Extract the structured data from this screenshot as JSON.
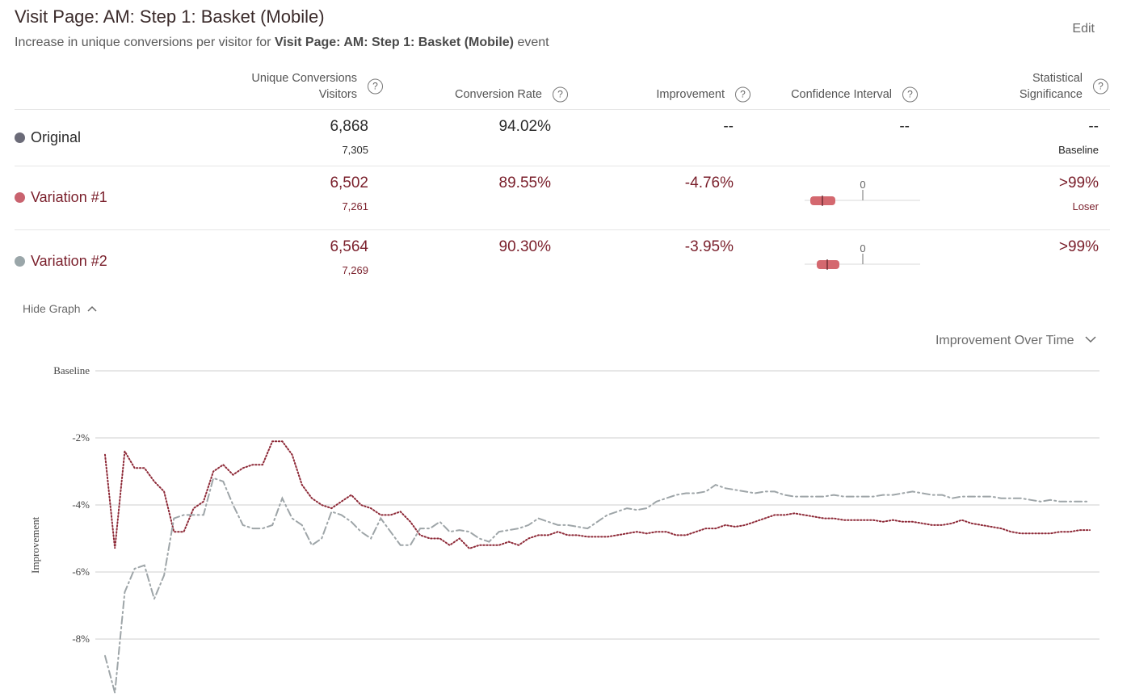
{
  "header": {
    "title": "Visit Page: AM: Step 1: Basket (Mobile)",
    "subtitle_prefix": "Increase in unique conversions per visitor for",
    "subtitle_event": "Visit Page: AM: Step 1: Basket (Mobile)",
    "subtitle_suffix": "event",
    "edit_label": "Edit"
  },
  "columns": {
    "conversions_line1": "Unique Conversions",
    "conversions_line2": "Visitors",
    "rate": "Conversion Rate",
    "improvement": "Improvement",
    "ci": "Confidence Interval",
    "sig_line1": "Statistical",
    "sig_line2": "Significance",
    "help_glyph": "?"
  },
  "rows": [
    {
      "name": "Original",
      "conversions": "6,868",
      "visitors": "7,305",
      "rate": "94.02%",
      "improvement": "--",
      "ci": "--",
      "significance": "--",
      "sig_note": "Baseline",
      "dot_color": "#6b6b78"
    },
    {
      "name": "Variation #1",
      "conversions": "6,502",
      "visitors": "7,261",
      "rate": "89.55%",
      "improvement": "-4.76%",
      "ci_zero": "0",
      "significance": ">99%",
      "sig_note": "Loser",
      "dot_color": "#c9636f"
    },
    {
      "name": "Variation #2",
      "conversions": "6,564",
      "visitors": "7,269",
      "rate": "90.30%",
      "improvement": "-3.95%",
      "ci_zero": "0",
      "significance": ">99%",
      "sig_note": "",
      "dot_color": "#9aa6a9"
    }
  ],
  "graph": {
    "hide_label": "Hide Graph",
    "metric_selector": "Improvement Over Time"
  },
  "colors": {
    "accent_maroon": "#7a1f2b",
    "ci_bar": "#d4686f",
    "variation1_line": "#8e2a38",
    "variation2_line": "#9ea5a8",
    "grid": "#cfcfcf"
  },
  "chart_data": {
    "type": "line",
    "ylabel": "Improvement",
    "ylim": [
      -9.5,
      0
    ],
    "yticks": [
      {
        "value": 0,
        "label": "Baseline"
      },
      {
        "value": -2,
        "label": "-2%"
      },
      {
        "value": -4,
        "label": "-4%"
      },
      {
        "value": -6,
        "label": "-6%"
      },
      {
        "value": -8,
        "label": "-8%"
      }
    ],
    "grid": true,
    "x_count": 101,
    "series": [
      {
        "key": "v1",
        "style": "dotted",
        "values": [
          -2.5,
          -5.3,
          -2.4,
          -2.9,
          -2.9,
          -3.3,
          -3.6,
          -4.8,
          -4.8,
          -4.1,
          -3.9,
          -3.0,
          -2.8,
          -3.1,
          -2.9,
          -2.8,
          -2.8,
          -2.1,
          -2.1,
          -2.5,
          -3.4,
          -3.8,
          -4.0,
          -4.1,
          -3.9,
          -3.7,
          -4.0,
          -4.1,
          -4.3,
          -4.3,
          -4.2,
          -4.5,
          -4.9,
          -5.0,
          -5.0,
          -5.2,
          -5.0,
          -5.3,
          -5.2,
          -5.2,
          -5.2,
          -5.1,
          -5.2,
          -5.0,
          -4.9,
          -4.9,
          -4.8,
          -4.9,
          -4.9,
          -4.95,
          -4.95,
          -4.95,
          -4.9,
          -4.85,
          -4.8,
          -4.85,
          -4.8,
          -4.8,
          -4.9,
          -4.9,
          -4.8,
          -4.7,
          -4.7,
          -4.6,
          -4.65,
          -4.6,
          -4.5,
          -4.4,
          -4.3,
          -4.3,
          -4.25,
          -4.3,
          -4.35,
          -4.4,
          -4.4,
          -4.45,
          -4.45,
          -4.45,
          -4.45,
          -4.5,
          -4.45,
          -4.5,
          -4.5,
          -4.55,
          -4.6,
          -4.6,
          -4.55,
          -4.45,
          -4.55,
          -4.6,
          -4.65,
          -4.7,
          -4.8,
          -4.85,
          -4.85,
          -4.85,
          -4.85,
          -4.8,
          -4.8,
          -4.75,
          -4.75
        ]
      },
      {
        "key": "v2",
        "style": "dash-dot",
        "values": [
          -8.5,
          -9.6,
          -6.6,
          -5.9,
          -5.8,
          -6.8,
          -6.1,
          -4.4,
          -4.3,
          -4.3,
          -4.3,
          -3.2,
          -3.3,
          -4.0,
          -4.6,
          -4.7,
          -4.7,
          -4.6,
          -3.8,
          -4.4,
          -4.6,
          -5.2,
          -5.0,
          -4.2,
          -4.3,
          -4.5,
          -4.8,
          -5.0,
          -4.4,
          -4.8,
          -5.2,
          -5.2,
          -4.7,
          -4.7,
          -4.5,
          -4.8,
          -4.75,
          -4.8,
          -5.0,
          -5.1,
          -4.8,
          -4.75,
          -4.7,
          -4.6,
          -4.4,
          -4.5,
          -4.6,
          -4.6,
          -4.65,
          -4.7,
          -4.5,
          -4.3,
          -4.2,
          -4.1,
          -4.15,
          -4.1,
          -3.9,
          -3.8,
          -3.7,
          -3.65,
          -3.65,
          -3.6,
          -3.4,
          -3.5,
          -3.55,
          -3.6,
          -3.65,
          -3.6,
          -3.6,
          -3.7,
          -3.75,
          -3.75,
          -3.75,
          -3.75,
          -3.7,
          -3.75,
          -3.75,
          -3.75,
          -3.75,
          -3.7,
          -3.7,
          -3.65,
          -3.6,
          -3.65,
          -3.7,
          -3.7,
          -3.8,
          -3.75,
          -3.75,
          -3.75,
          -3.75,
          -3.8,
          -3.8,
          -3.8,
          -3.85,
          -3.9,
          -3.85,
          -3.9,
          -3.9,
          -3.9,
          -3.9
        ]
      }
    ]
  }
}
